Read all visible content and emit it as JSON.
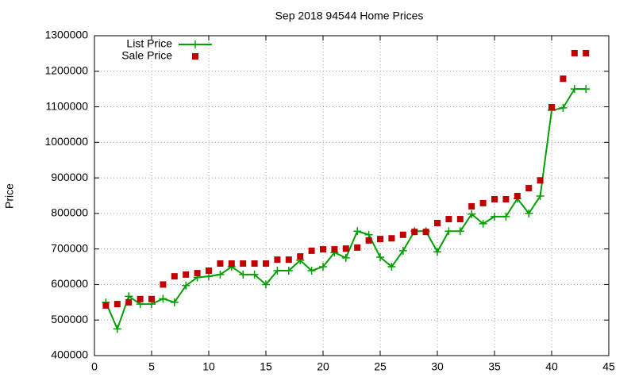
{
  "chart_data": {
    "type": "line",
    "title": "Sep 2018 94544 Home Prices",
    "y_label": "Price",
    "x": [
      1,
      2,
      3,
      4,
      5,
      6,
      7,
      8,
      9,
      10,
      11,
      12,
      13,
      14,
      15,
      16,
      17,
      18,
      19,
      20,
      21,
      22,
      23,
      24,
      25,
      26,
      27,
      28,
      29,
      30,
      31,
      32,
      33,
      34,
      35,
      36,
      37,
      38,
      39,
      40,
      41,
      42,
      43
    ],
    "series": [
      {
        "name": "List Price",
        "color": "#00a000",
        "style": "linespoints",
        "values": [
          550000,
          475000,
          567000,
          545000,
          545000,
          560000,
          550000,
          597000,
          620000,
          623000,
          628000,
          650000,
          628000,
          628000,
          600000,
          639000,
          639000,
          668000,
          639000,
          650000,
          690000,
          675000,
          750000,
          740000,
          677000,
          650000,
          695000,
          750000,
          750000,
          692000,
          750000,
          750000,
          798000,
          771000,
          791000,
          791000,
          842000,
          800000,
          849000,
          1090000,
          1097000,
          1150000,
          1150000
        ]
      },
      {
        "name": "Sale Price",
        "color": "#c00000",
        "style": "points",
        "values": [
          541000,
          545000,
          550000,
          559000,
          559000,
          600000,
          623000,
          628000,
          632000,
          639000,
          659000,
          659000,
          659000,
          659000,
          659000,
          670000,
          670000,
          679000,
          695000,
          699000,
          699000,
          701000,
          704000,
          724000,
          728000,
          730000,
          740000,
          748000,
          748000,
          773000,
          784000,
          784000,
          820000,
          829000,
          840000,
          840000,
          849000,
          871000,
          893000,
          1099000,
          1179000,
          1251000,
          1251000
        ]
      }
    ],
    "xlim": [
      0,
      45
    ],
    "xticks": [
      0,
      5,
      10,
      15,
      20,
      25,
      30,
      35,
      40,
      45
    ],
    "ylim": [
      400000,
      1300000
    ],
    "yticks": [
      400000,
      500000,
      600000,
      700000,
      800000,
      900000,
      1000000,
      1100000,
      1200000,
      1300000
    ],
    "grid": true,
    "legend": "top-left"
  }
}
